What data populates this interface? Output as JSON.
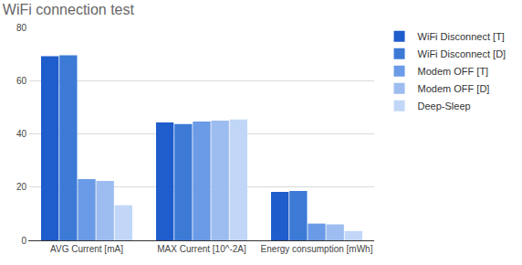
{
  "chart_data": {
    "type": "bar",
    "title": "WiFi connection test",
    "categories": [
      "AVG Current [mA]",
      "MAX Current [10^-2A]",
      "Energy consumption [mWh]"
    ],
    "series": [
      {
        "name": "WiFi Disconnect [T]",
        "color": "#1f5ccc",
        "values": [
          69.2,
          44.3,
          18.2
        ]
      },
      {
        "name": "WiFi Disconnect [D]",
        "color": "#3d7ad6",
        "values": [
          69.5,
          43.7,
          18.5
        ]
      },
      {
        "name": "Modem OFF [T]",
        "color": "#6b9be6",
        "values": [
          23,
          44.6,
          6.3
        ]
      },
      {
        "name": "Modem OFF [D]",
        "color": "#9dbdf0",
        "values": [
          22.3,
          45,
          6
        ]
      },
      {
        "name": "Deep-Sleep",
        "color": "#c2d7f7",
        "values": [
          13.2,
          45.4,
          3.5
        ]
      }
    ],
    "ylim": [
      0,
      80
    ],
    "yticks": [
      0,
      20,
      40,
      60,
      80
    ],
    "grid": true,
    "legend": "right"
  }
}
